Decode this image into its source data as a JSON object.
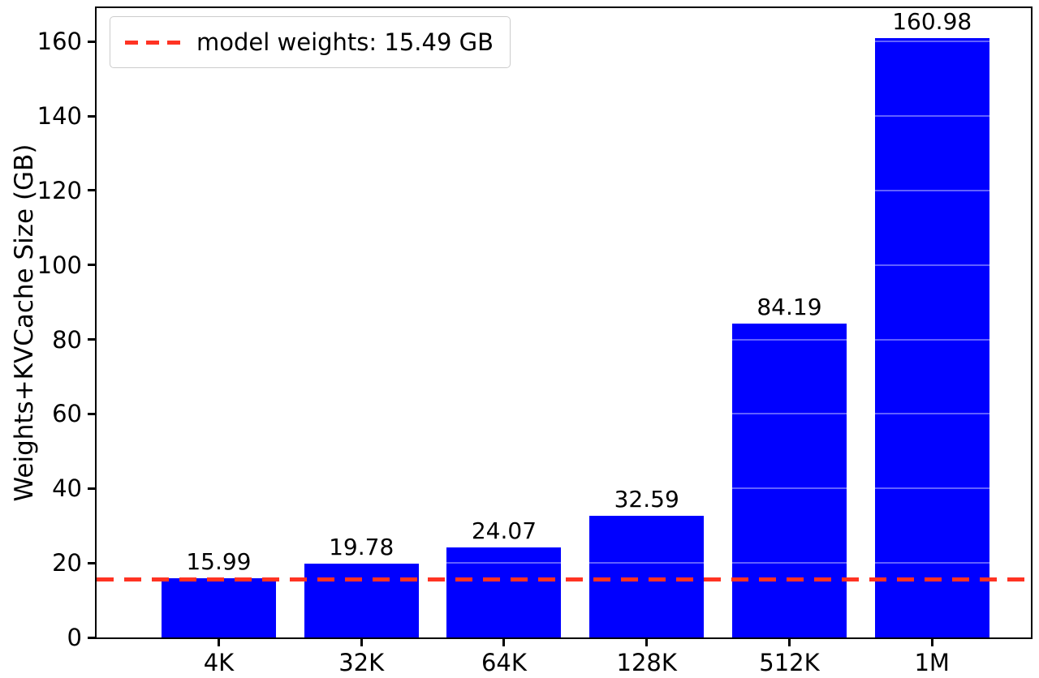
{
  "chart_data": {
    "type": "bar",
    "title": "",
    "xlabel": "",
    "ylabel": "Weights+KVCache Size (GB)",
    "categories": [
      "4K",
      "32K",
      "64K",
      "128K",
      "512K",
      "1M"
    ],
    "values": [
      15.99,
      19.78,
      24.07,
      32.59,
      84.19,
      160.98
    ],
    "bar_labels": [
      "15.99",
      "19.78",
      "24.07",
      "32.59",
      "84.19",
      "160.98"
    ],
    "ylim": [
      0,
      169
    ],
    "yticks": [
      0,
      20,
      40,
      60,
      80,
      100,
      120,
      140,
      160
    ],
    "grid": false,
    "legend_position": "upper left",
    "reference_line": {
      "value": 15.49,
      "label": "model weights: 15.49 GB",
      "style": "dashed"
    },
    "colors": {
      "bar": "#0000ff",
      "reference_line": "#ff3323",
      "axis": "#000000",
      "text": "#000000"
    }
  }
}
